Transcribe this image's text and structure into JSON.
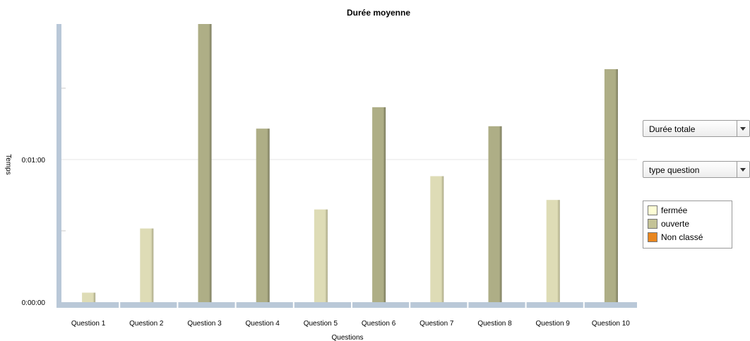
{
  "chart_data": {
    "type": "bar",
    "title": "Durée moyenne",
    "xlabel": "Questions",
    "ylabel": "Temps",
    "categories": [
      "Question 1",
      "Question 2",
      "Question 3",
      "Question 4",
      "Question 5",
      "Question 6",
      "Question 7",
      "Question 8",
      "Question 9",
      "Question 10"
    ],
    "values": [
      4,
      31,
      117,
      73,
      39,
      82,
      53,
      74,
      43,
      98
    ],
    "value_unit": "seconds",
    "types": [
      "fermée",
      "fermée",
      "ouverte",
      "ouverte",
      "fermée",
      "ouverte",
      "fermée",
      "ouverte",
      "fermée",
      "ouverte"
    ],
    "yticks": [
      {
        "value": 0,
        "label": "0:00:00"
      },
      {
        "value": 60,
        "label": "0:01:00"
      }
    ],
    "ylim": [
      0,
      117
    ],
    "grid": true,
    "legend_placement": "right"
  },
  "controls": {
    "measure_select": "Durée totale",
    "group_select": "type question"
  },
  "legend": {
    "items": [
      {
        "label": "fermée",
        "color": "#fdfdd5"
      },
      {
        "label": "ouverte",
        "color": "#c4c397"
      },
      {
        "label": "Non classé",
        "color": "#e8861f"
      }
    ]
  },
  "colors": {
    "fermée": "#dedcb6",
    "ouverte": "#aeae86",
    "axis": "#b9c8d8",
    "grid": "#e6e6e6"
  }
}
